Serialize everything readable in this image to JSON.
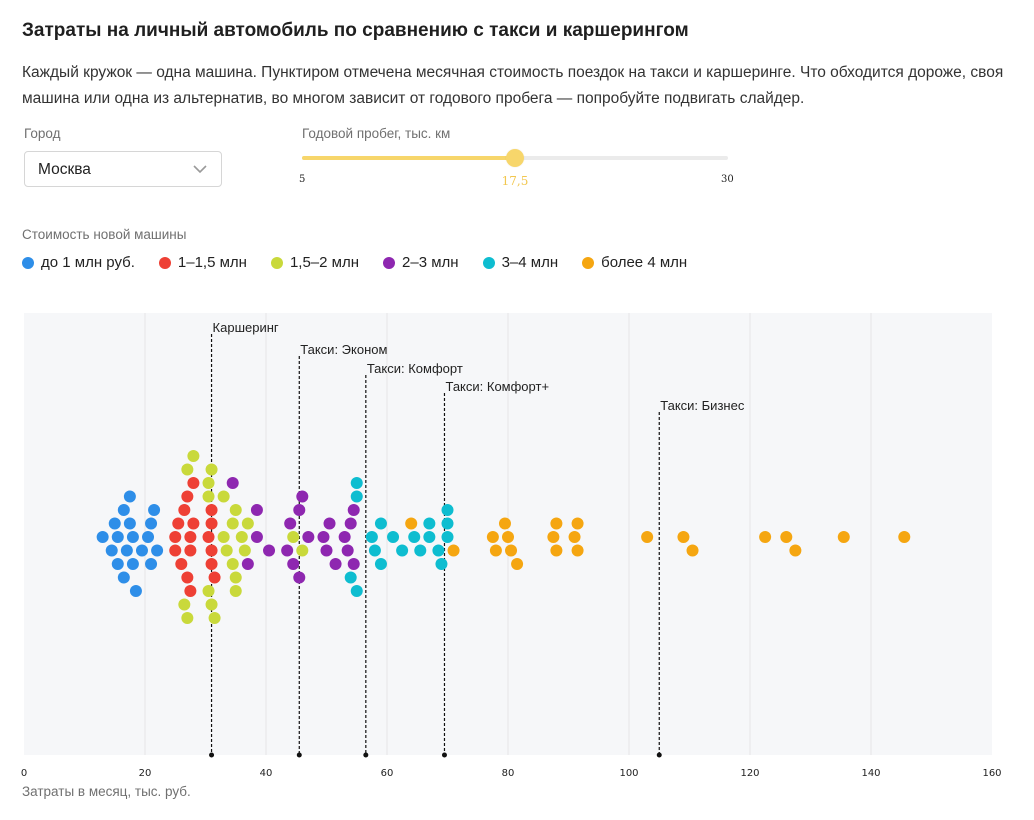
{
  "header": {
    "title": "Затраты на личный автомобиль по сравнению с такси и каршерингом",
    "description": "Каждый кружок — одна машина. Пунктиром отмечена месячная стоимость поездок на такси и каршеринге. Что обходится дороже, своя машина или одна из альтернатив, во многом зависит от годового пробега — попробуйте подвигать слайдер."
  },
  "controls": {
    "city_label": "Город",
    "city_value": "Москва",
    "mileage_label": "Годовой пробег, тыс. км",
    "mileage_min": "5",
    "mileage_max": "30",
    "mileage_value": "17,5",
    "mileage_fraction": 0.5,
    "price_label": "Стоимость новой машины"
  },
  "colors": {
    "accent": "#f7d66b",
    "gridline": "#e6e6e6",
    "plot_bg": "#f6f7f9"
  },
  "chart_data": {
    "type": "scatter",
    "title": "",
    "xlabel": "Затраты в месяц, тыс. руб.",
    "ylabel": "",
    "xlim": [
      0,
      160
    ],
    "xticks": [
      "0",
      "20",
      "40",
      "60",
      "80",
      "100",
      "120",
      "140",
      "160"
    ],
    "grid": true,
    "legend_position": "top-left",
    "series": [
      {
        "name": "до 1 млн руб.",
        "color": "#2e8ee8",
        "x": [
          13,
          14.5,
          15,
          15.5,
          15.5,
          16.5,
          16.5,
          17,
          17.5,
          17.5,
          18,
          18,
          18.5,
          19.5,
          20.5,
          21,
          21,
          21.5,
          22
        ]
      },
      {
        "name": "1–1,5 млн",
        "color": "#ee4035",
        "x": [
          25,
          25,
          25.5,
          26,
          26.5,
          27,
          27,
          27.5,
          27.5,
          27.5,
          28,
          28,
          30.5,
          31,
          31,
          31,
          31,
          31.5
        ]
      },
      {
        "name": "1,5–2 млн",
        "color": "#c9d93b",
        "x": [
          26.5,
          27,
          27,
          28,
          30.5,
          30.5,
          30.5,
          31,
          31,
          31.5,
          33,
          33,
          33.5,
          34.5,
          34.5,
          35,
          35,
          35,
          36,
          36.5,
          37,
          44.5,
          46
        ]
      },
      {
        "name": "2–3 млн",
        "color": "#8e27b0",
        "x": [
          34.5,
          37,
          38.5,
          38.5,
          40.5,
          43.5,
          44,
          44.5,
          45.5,
          45.5,
          46,
          47,
          49.5,
          50,
          50.5,
          51.5,
          53,
          53.5,
          54,
          54.5,
          54.5
        ]
      },
      {
        "name": "3–4 млн",
        "color": "#0ebdd0",
        "x": [
          54,
          55,
          55,
          55,
          57.5,
          58,
          59,
          59,
          61,
          62.5,
          64.5,
          65.5,
          67,
          67,
          68.5,
          69,
          70,
          70,
          70
        ]
      },
      {
        "name": "более 4 млн",
        "color": "#f5a611",
        "x": [
          64,
          71,
          77.5,
          78,
          79.5,
          80,
          80.5,
          81.5,
          87.5,
          88,
          88,
          91,
          91.5,
          91.5,
          103,
          109,
          110.5,
          122.5,
          126,
          127.5,
          135.5,
          145.5
        ]
      }
    ],
    "reference_lines": [
      {
        "label": "Каршеринг",
        "x": 31
      },
      {
        "label": "Такси: Эконом",
        "x": 45.5
      },
      {
        "label": "Такси: Комфорт",
        "x": 56.5
      },
      {
        "label": "Такси: Комфорт+",
        "x": 69.5
      },
      {
        "label": "Такси: Бизнес",
        "x": 105
      }
    ]
  }
}
